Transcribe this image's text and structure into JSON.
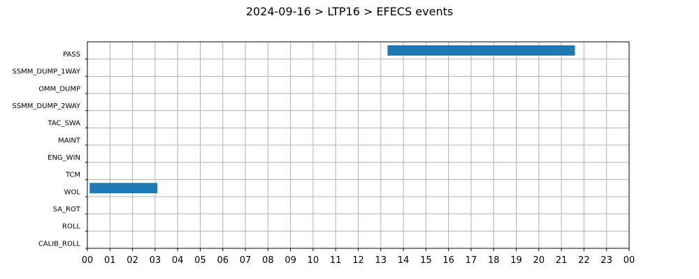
{
  "chart_data": {
    "type": "bar",
    "orientation": "horizontal-timeline",
    "title": "2024-09-16 > LTP16 > EFECS events",
    "xlabel": "",
    "ylabel": "",
    "grid": true,
    "x_tick_labels": [
      "00",
      "01",
      "02",
      "03",
      "04",
      "05",
      "06",
      "07",
      "08",
      "09",
      "10",
      "11",
      "12",
      "13",
      "14",
      "15",
      "16",
      "17",
      "18",
      "19",
      "20",
      "21",
      "22",
      "23",
      "00"
    ],
    "xlim_hours": [
      0,
      24
    ],
    "categories": [
      "PASS",
      "SSMM_DUMP_1WAY",
      "OMM_DUMP",
      "SSMM_DUMP_2WAY",
      "TAC_SWA",
      "MAINT",
      "ENG_WIN",
      "TCM",
      "WOL",
      "SA_ROT",
      "ROLL",
      "CALIB_ROLL"
    ],
    "events": [
      {
        "category": "PASS",
        "start_hour": 13.3,
        "end_hour": 21.6
      },
      {
        "category": "WOL",
        "start_hour": 0.1,
        "end_hour": 3.1
      }
    ],
    "bar_color": "#1f77b4"
  }
}
